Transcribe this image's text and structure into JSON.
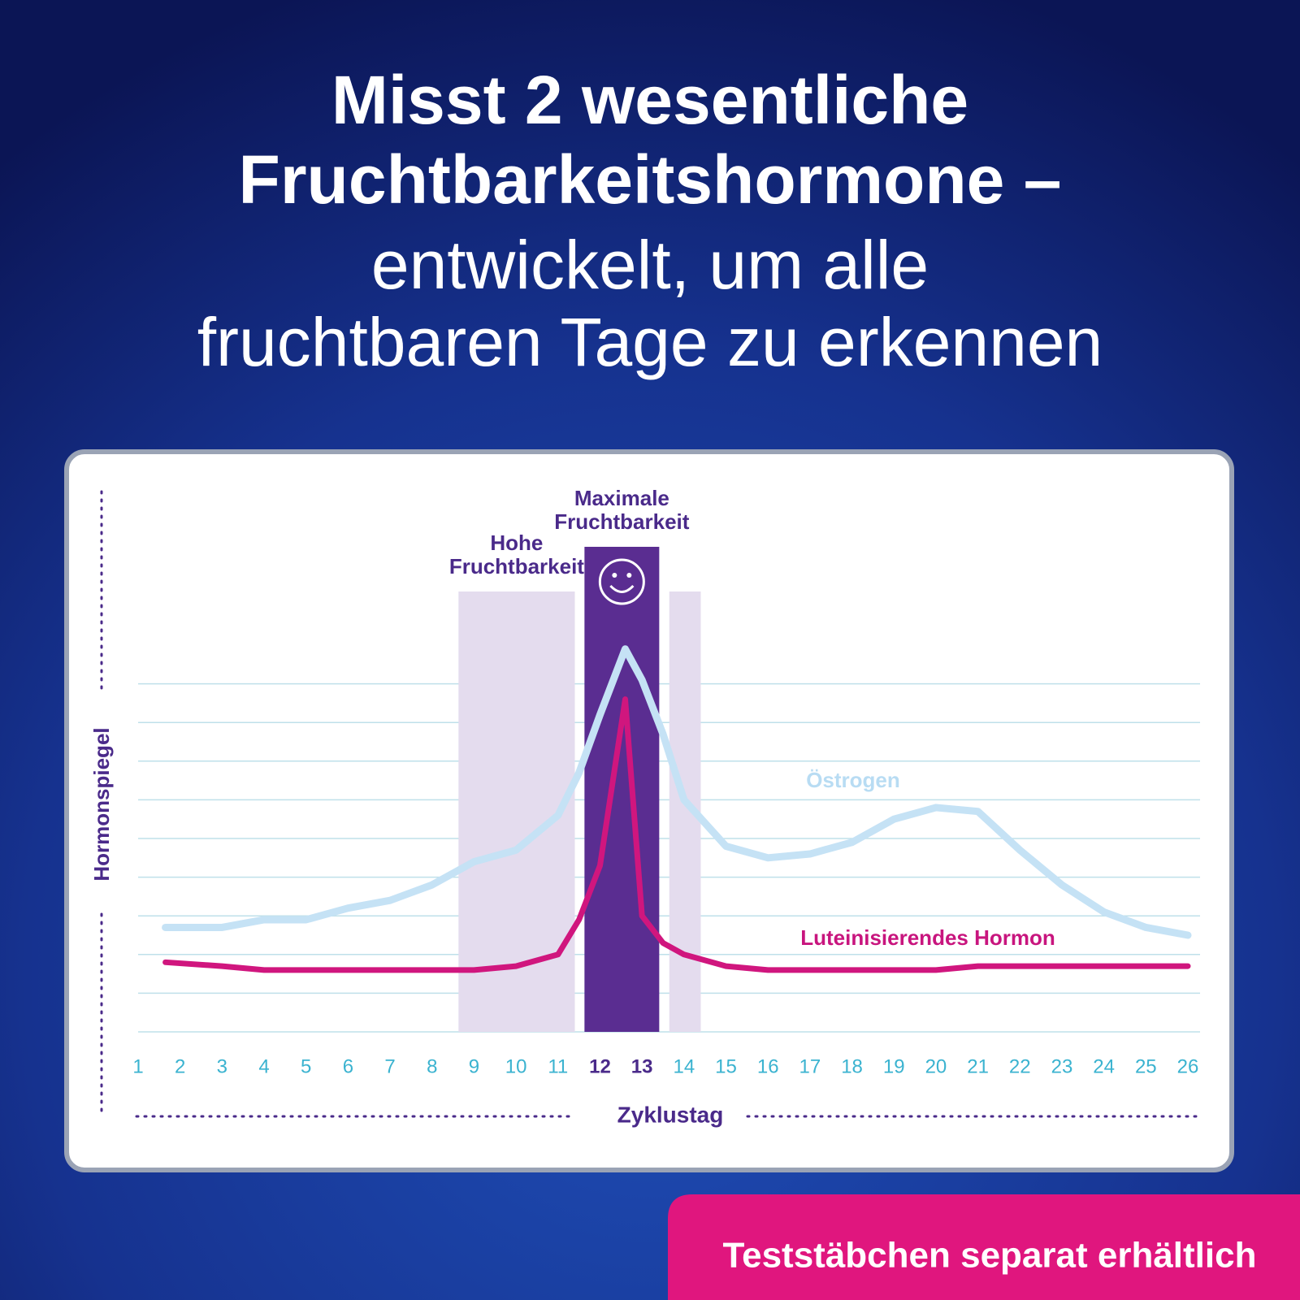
{
  "headline": {
    "bold": [
      "Misst 2 wesentliche",
      "Fruchtbarkeitshormone –"
    ],
    "light": [
      "entwickelt, um alle",
      "fruchtbaren Tage zu erkennen"
    ]
  },
  "badge": "Teststäbchen separat erhältlich",
  "chart_data": {
    "type": "line",
    "xlabel": "Zyklustag",
    "ylabel": "Hormonspiegel",
    "x": [
      1.65,
      3,
      4,
      5,
      6,
      7,
      8,
      9,
      10,
      11,
      11.5,
      12,
      12.6,
      13,
      13.5,
      14,
      15,
      16,
      17,
      18,
      19,
      20,
      21,
      22,
      23,
      24,
      25,
      26
    ],
    "series": [
      {
        "name": "Östrogen",
        "color": "#c5e2f5",
        "values": [
          2.7,
          2.7,
          2.9,
          2.9,
          3.2,
          3.4,
          3.8,
          4.4,
          4.7,
          5.6,
          6.7,
          8.2,
          9.9,
          9.1,
          7.7,
          6.0,
          4.8,
          4.5,
          4.6,
          4.9,
          5.5,
          5.8,
          5.7,
          4.7,
          3.8,
          3.1,
          2.7,
          2.5
        ]
      },
      {
        "name": "Luteinisierendes Hormon",
        "color": "#d0167e",
        "values": [
          1.8,
          1.7,
          1.6,
          1.6,
          1.6,
          1.6,
          1.6,
          1.6,
          1.7,
          2.0,
          2.9,
          4.3,
          8.6,
          3.0,
          2.3,
          2.0,
          1.7,
          1.6,
          1.6,
          1.6,
          1.6,
          1.6,
          1.7,
          1.7,
          1.7,
          1.7,
          1.7,
          1.7
        ]
      }
    ],
    "regions": [
      {
        "label": [
          "Hohe",
          "Fruchtbarkeit"
        ],
        "color": "#e4dcee",
        "spans": [
          [
            8.63,
            11.4
          ],
          [
            13.65,
            14.4
          ]
        ]
      },
      {
        "label": [
          "Maximale",
          "Fruchtbarkeit"
        ],
        "color": "#5a2d91",
        "spans": [
          [
            11.63,
            13.41
          ]
        ]
      }
    ],
    "xlim": [
      1,
      26
    ],
    "xticks": [
      1,
      2,
      3,
      4,
      5,
      6,
      7,
      8,
      9,
      10,
      11,
      12,
      13,
      14,
      15,
      16,
      17,
      18,
      19,
      20,
      21,
      22,
      23,
      24,
      25,
      26
    ],
    "highlight_xticks": [
      12,
      13
    ],
    "ylim": [
      0,
      10
    ],
    "yticks": [
      0,
      1,
      2,
      3,
      4,
      5,
      6,
      7,
      8,
      9
    ],
    "grid": true
  }
}
